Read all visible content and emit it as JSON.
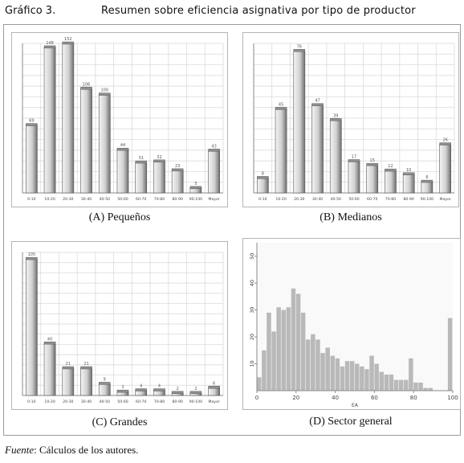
{
  "header": {
    "figure_label": "Gráfico 3.",
    "title": "Resumen sobre eficiencia asignativa por tipo de productor"
  },
  "panels": {
    "a_caption": "(A) Pequeños",
    "b_caption": "(B) Medianos",
    "c_caption": "(C) Grandes",
    "d_caption": "(D) Sector general"
  },
  "footer": {
    "source_label": "Fuente",
    "source_text": ": Cálculos de los autores."
  },
  "colors": {
    "bar_light": "#f4f4f4",
    "bar_dark": "#6f6f6f",
    "bar_top": "#8d8d8d",
    "hist_bar": "#b9b9b9",
    "grid": "#d6d6d6",
    "axis": "#8a8a8a"
  },
  "chart_data": [
    {
      "type": "bar",
      "panel": "A",
      "categories": [
        "0-10",
        "10-20",
        "20-30",
        "30-40",
        "40-50",
        "50-60",
        "60-70",
        "70-80",
        "80-90",
        "90-100",
        "Mayor"
      ],
      "values": [
        69,
        148,
        152,
        106,
        100,
        44,
        31,
        32,
        23,
        5,
        43
      ],
      "ylim": [
        0,
        152
      ],
      "grid": true
    },
    {
      "type": "bar",
      "panel": "B",
      "categories": [
        "0-10",
        "10-20",
        "20-30",
        "30-40",
        "40-50",
        "50-60",
        "60-70",
        "70-80",
        "80-90",
        "90-100",
        "Mayor"
      ],
      "values": [
        8,
        45,
        76,
        47,
        39,
        17,
        15,
        12,
        10,
        6,
        26
      ],
      "ylim": [
        0,
        80
      ],
      "grid": true
    },
    {
      "type": "bar",
      "panel": "C",
      "categories": [
        "0-10",
        "10-20",
        "20-30",
        "30-40",
        "40-50",
        "50-60",
        "60-70",
        "70-80",
        "80-90",
        "90-100",
        "Mayor"
      ],
      "values": [
        105,
        40,
        21,
        21,
        9,
        3,
        4,
        4,
        2,
        2,
        6
      ],
      "ylim": [
        0,
        110
      ],
      "grid": true
    },
    {
      "type": "bar",
      "panel": "D",
      "histogram": true,
      "xlabel": "EA",
      "x_ticks": [
        "0",
        "20",
        "40",
        "60",
        "80",
        "100"
      ],
      "y_ticks": [
        "10",
        "20",
        "30",
        "40",
        "50"
      ],
      "xlim": [
        0,
        100
      ],
      "ylim": [
        0,
        55
      ],
      "bin_width": 2.5,
      "values": [
        5,
        15,
        29,
        22,
        31,
        30,
        31,
        38,
        36,
        29,
        19,
        21,
        19,
        14,
        16,
        13,
        12,
        9,
        11,
        11,
        10,
        9,
        8,
        13,
        10,
        7,
        6,
        6,
        4,
        4,
        4,
        12,
        3,
        3,
        1,
        1,
        0,
        0,
        0,
        27
      ],
      "grid": false
    }
  ]
}
